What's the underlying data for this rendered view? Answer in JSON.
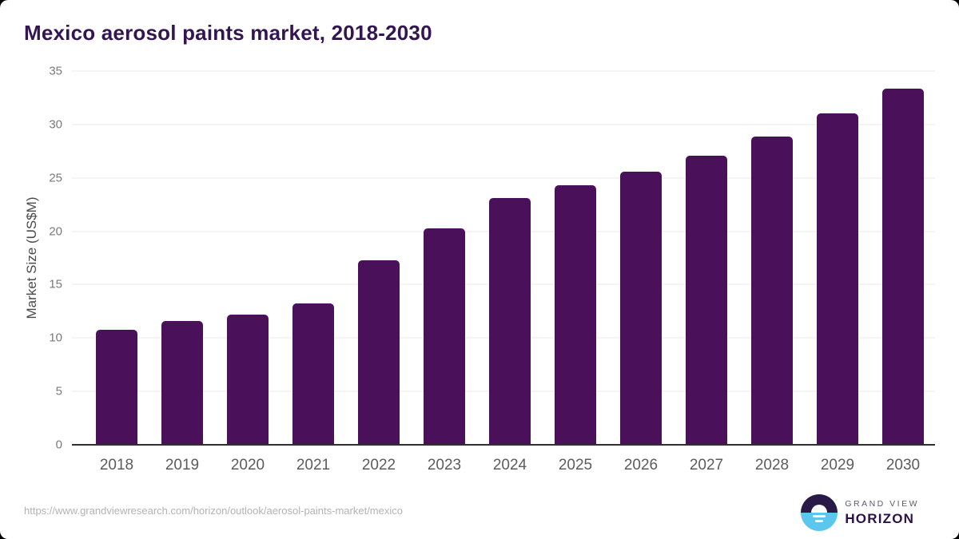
{
  "title": {
    "text": "Mexico aerosol paints market, 2018-2030",
    "color": "#331551"
  },
  "chart_data": {
    "type": "bar",
    "title": "Mexico aerosol paints market, 2018-2030",
    "categories": [
      "2018",
      "2019",
      "2020",
      "2021",
      "2022",
      "2023",
      "2024",
      "2025",
      "2026",
      "2027",
      "2028",
      "2029",
      "2030"
    ],
    "values": [
      10.7,
      11.5,
      12.1,
      13.2,
      17.2,
      20.2,
      23.0,
      24.2,
      25.5,
      27.0,
      28.8,
      31.0,
      33.3
    ],
    "xlabel": "",
    "ylabel": "Market Size (US$M)",
    "ylim": [
      0,
      35
    ],
    "yticks": [
      0,
      5,
      10,
      15,
      20,
      25,
      30,
      35
    ],
    "grid": true,
    "legend": false,
    "bar_color": "#4a1059"
  },
  "footer": {
    "source_url": "https://www.grandviewresearch.com/horizon/outlook/aerosol-paints-market/mexico",
    "logo": {
      "line1": "GRAND VIEW",
      "line2": "HORIZON"
    }
  },
  "colors": {
    "background": "#ffffff",
    "corner_background": "#000000",
    "bar": "#4a1059",
    "title": "#331551",
    "gridline": "#e8e8e8",
    "axis_line": "#303030",
    "ytick_label": "#7a7a7a",
    "xtick_label": "#5c5c5c",
    "yaxis_title": "#4a4a4a",
    "url_text": "#b3b3b3",
    "logo_navy": "#2a1a47",
    "logo_blue": "#5bc6ee",
    "logo_gray_text": "#5e5a6c",
    "logo_purple_text": "#2b1245"
  }
}
